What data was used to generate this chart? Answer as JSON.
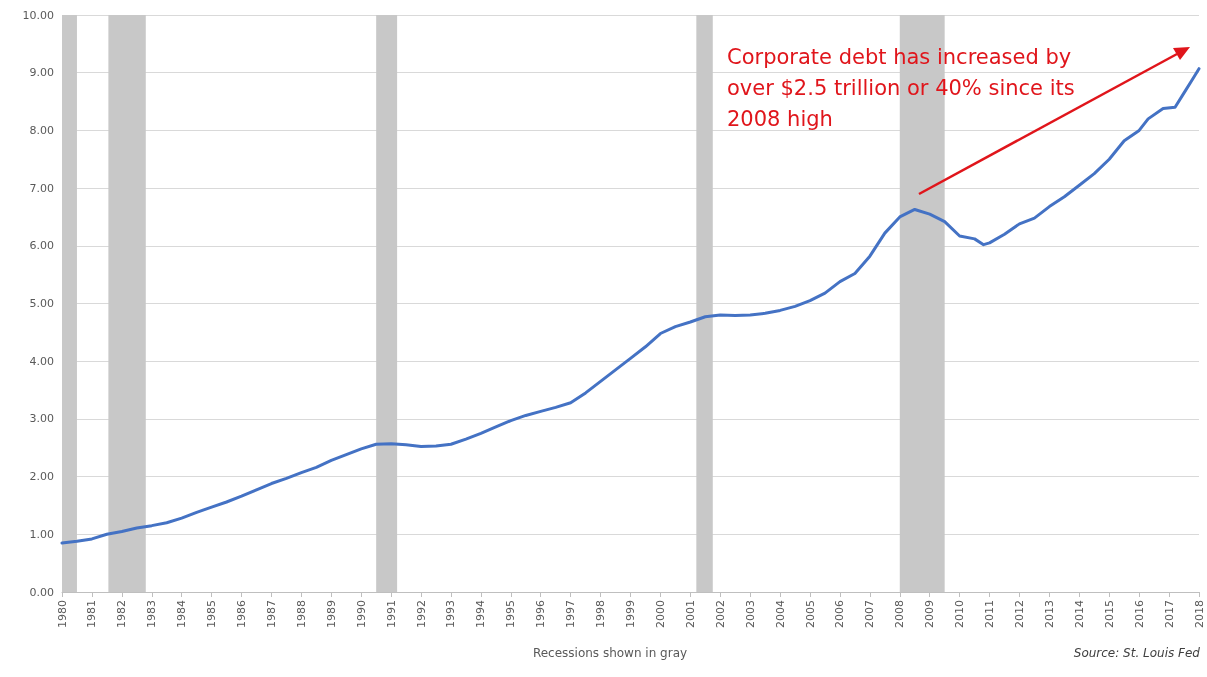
{
  "chart_data": {
    "type": "line",
    "x": [
      1980,
      1980.5,
      1981,
      1981.5,
      1982,
      1982.5,
      1983,
      1983.5,
      1984,
      1984.5,
      1985,
      1985.5,
      1986,
      1986.5,
      1987,
      1987.5,
      1988,
      1988.5,
      1989,
      1989.5,
      1990,
      1990.5,
      1991,
      1991.5,
      1992,
      1992.5,
      1993,
      1993.5,
      1994,
      1994.5,
      1995,
      1995.5,
      1996,
      1996.5,
      1997,
      1997.5,
      1998,
      1998.5,
      1999,
      1999.5,
      2000,
      2000.5,
      2001,
      2001.5,
      2002,
      2002.5,
      2003,
      2003.5,
      2004,
      2004.5,
      2005,
      2005.5,
      2006,
      2006.5,
      2007,
      2007.5,
      2008,
      2008.5,
      2009,
      2009.5,
      2010,
      2010.5,
      2010.8,
      2011,
      2011.5,
      2012,
      2012.5,
      2013,
      2013.5,
      2014,
      2014.5,
      2015,
      2015.5,
      2016,
      2016.3,
      2016.8,
      2017.2,
      2017.5,
      2017.8,
      2018
    ],
    "series": [
      {
        "color": "#4472c4",
        "values": [
          0.85,
          0.88,
          0.92,
          1.0,
          1.05,
          1.11,
          1.15,
          1.2,
          1.28,
          1.38,
          1.47,
          1.56,
          1.66,
          1.77,
          1.88,
          1.97,
          2.07,
          2.16,
          2.28,
          2.38,
          2.48,
          2.56,
          2.57,
          2.55,
          2.52,
          2.53,
          2.56,
          2.65,
          2.75,
          2.86,
          2.97,
          3.06,
          3.13,
          3.2,
          3.28,
          3.45,
          3.65,
          3.85,
          4.05,
          4.25,
          4.48,
          4.6,
          4.68,
          4.77,
          4.8,
          4.79,
          4.8,
          4.83,
          4.88,
          4.95,
          5.05,
          5.18,
          5.38,
          5.52,
          5.82,
          6.22,
          6.5,
          6.63,
          6.55,
          6.42,
          6.17,
          6.12,
          6.02,
          6.05,
          6.2,
          6.38,
          6.48,
          6.68,
          6.85,
          7.05,
          7.25,
          7.5,
          7.82,
          8.0,
          8.2,
          8.38,
          8.4,
          8.65,
          8.9,
          9.07
        ]
      }
    ],
    "xlim": [
      1980,
      2018
    ],
    "xticks": [
      1980,
      1981,
      1982,
      1983,
      1984,
      1985,
      1986,
      1987,
      1988,
      1989,
      1990,
      1991,
      1992,
      1993,
      1994,
      1995,
      1996,
      1997,
      1998,
      1999,
      2000,
      2001,
      2002,
      2003,
      2004,
      2005,
      2006,
      2007,
      2008,
      2009,
      2010,
      2011,
      2012,
      2013,
      2014,
      2015,
      2016,
      2017,
      2018
    ],
    "ylim": [
      0,
      10
    ],
    "yticks": [
      {
        "value": 0,
        "label": "0.00"
      },
      {
        "value": 1,
        "label": "1.00"
      },
      {
        "value": 2,
        "label": "2.00"
      },
      {
        "value": 3,
        "label": "3.00"
      },
      {
        "value": 4,
        "label": "4.00"
      },
      {
        "value": 5,
        "label": "5.00"
      },
      {
        "value": 6,
        "label": "6.00"
      },
      {
        "value": 7,
        "label": "7.00"
      },
      {
        "value": 8,
        "label": "8.00"
      },
      {
        "value": 9,
        "label": "9.00"
      },
      {
        "value": 10,
        "label": "10.00"
      }
    ],
    "grid": "y",
    "marker": "none",
    "line_style": "solid",
    "bands": [
      {
        "axis": "x",
        "from": 1980,
        "to": 1980.5,
        "color": "#c8c8c8"
      },
      {
        "axis": "x",
        "from": 1981.55,
        "to": 1982.8,
        "color": "#c8c8c8"
      },
      {
        "axis": "x",
        "from": 1990.5,
        "to": 1991.2,
        "color": "#c8c8c8"
      },
      {
        "axis": "x",
        "from": 2001.2,
        "to": 2001.75,
        "color": "#c8c8c8"
      },
      {
        "axis": "x",
        "from": 2008,
        "to": 2009.5,
        "color": "#c8c8c8"
      }
    ],
    "annotations": [
      "Corporate debt has increased by over $2.5 trillion or 40% since its 2008 high",
      "Recessions shown in gray",
      "Source: St. Louis Fed"
    ]
  }
}
